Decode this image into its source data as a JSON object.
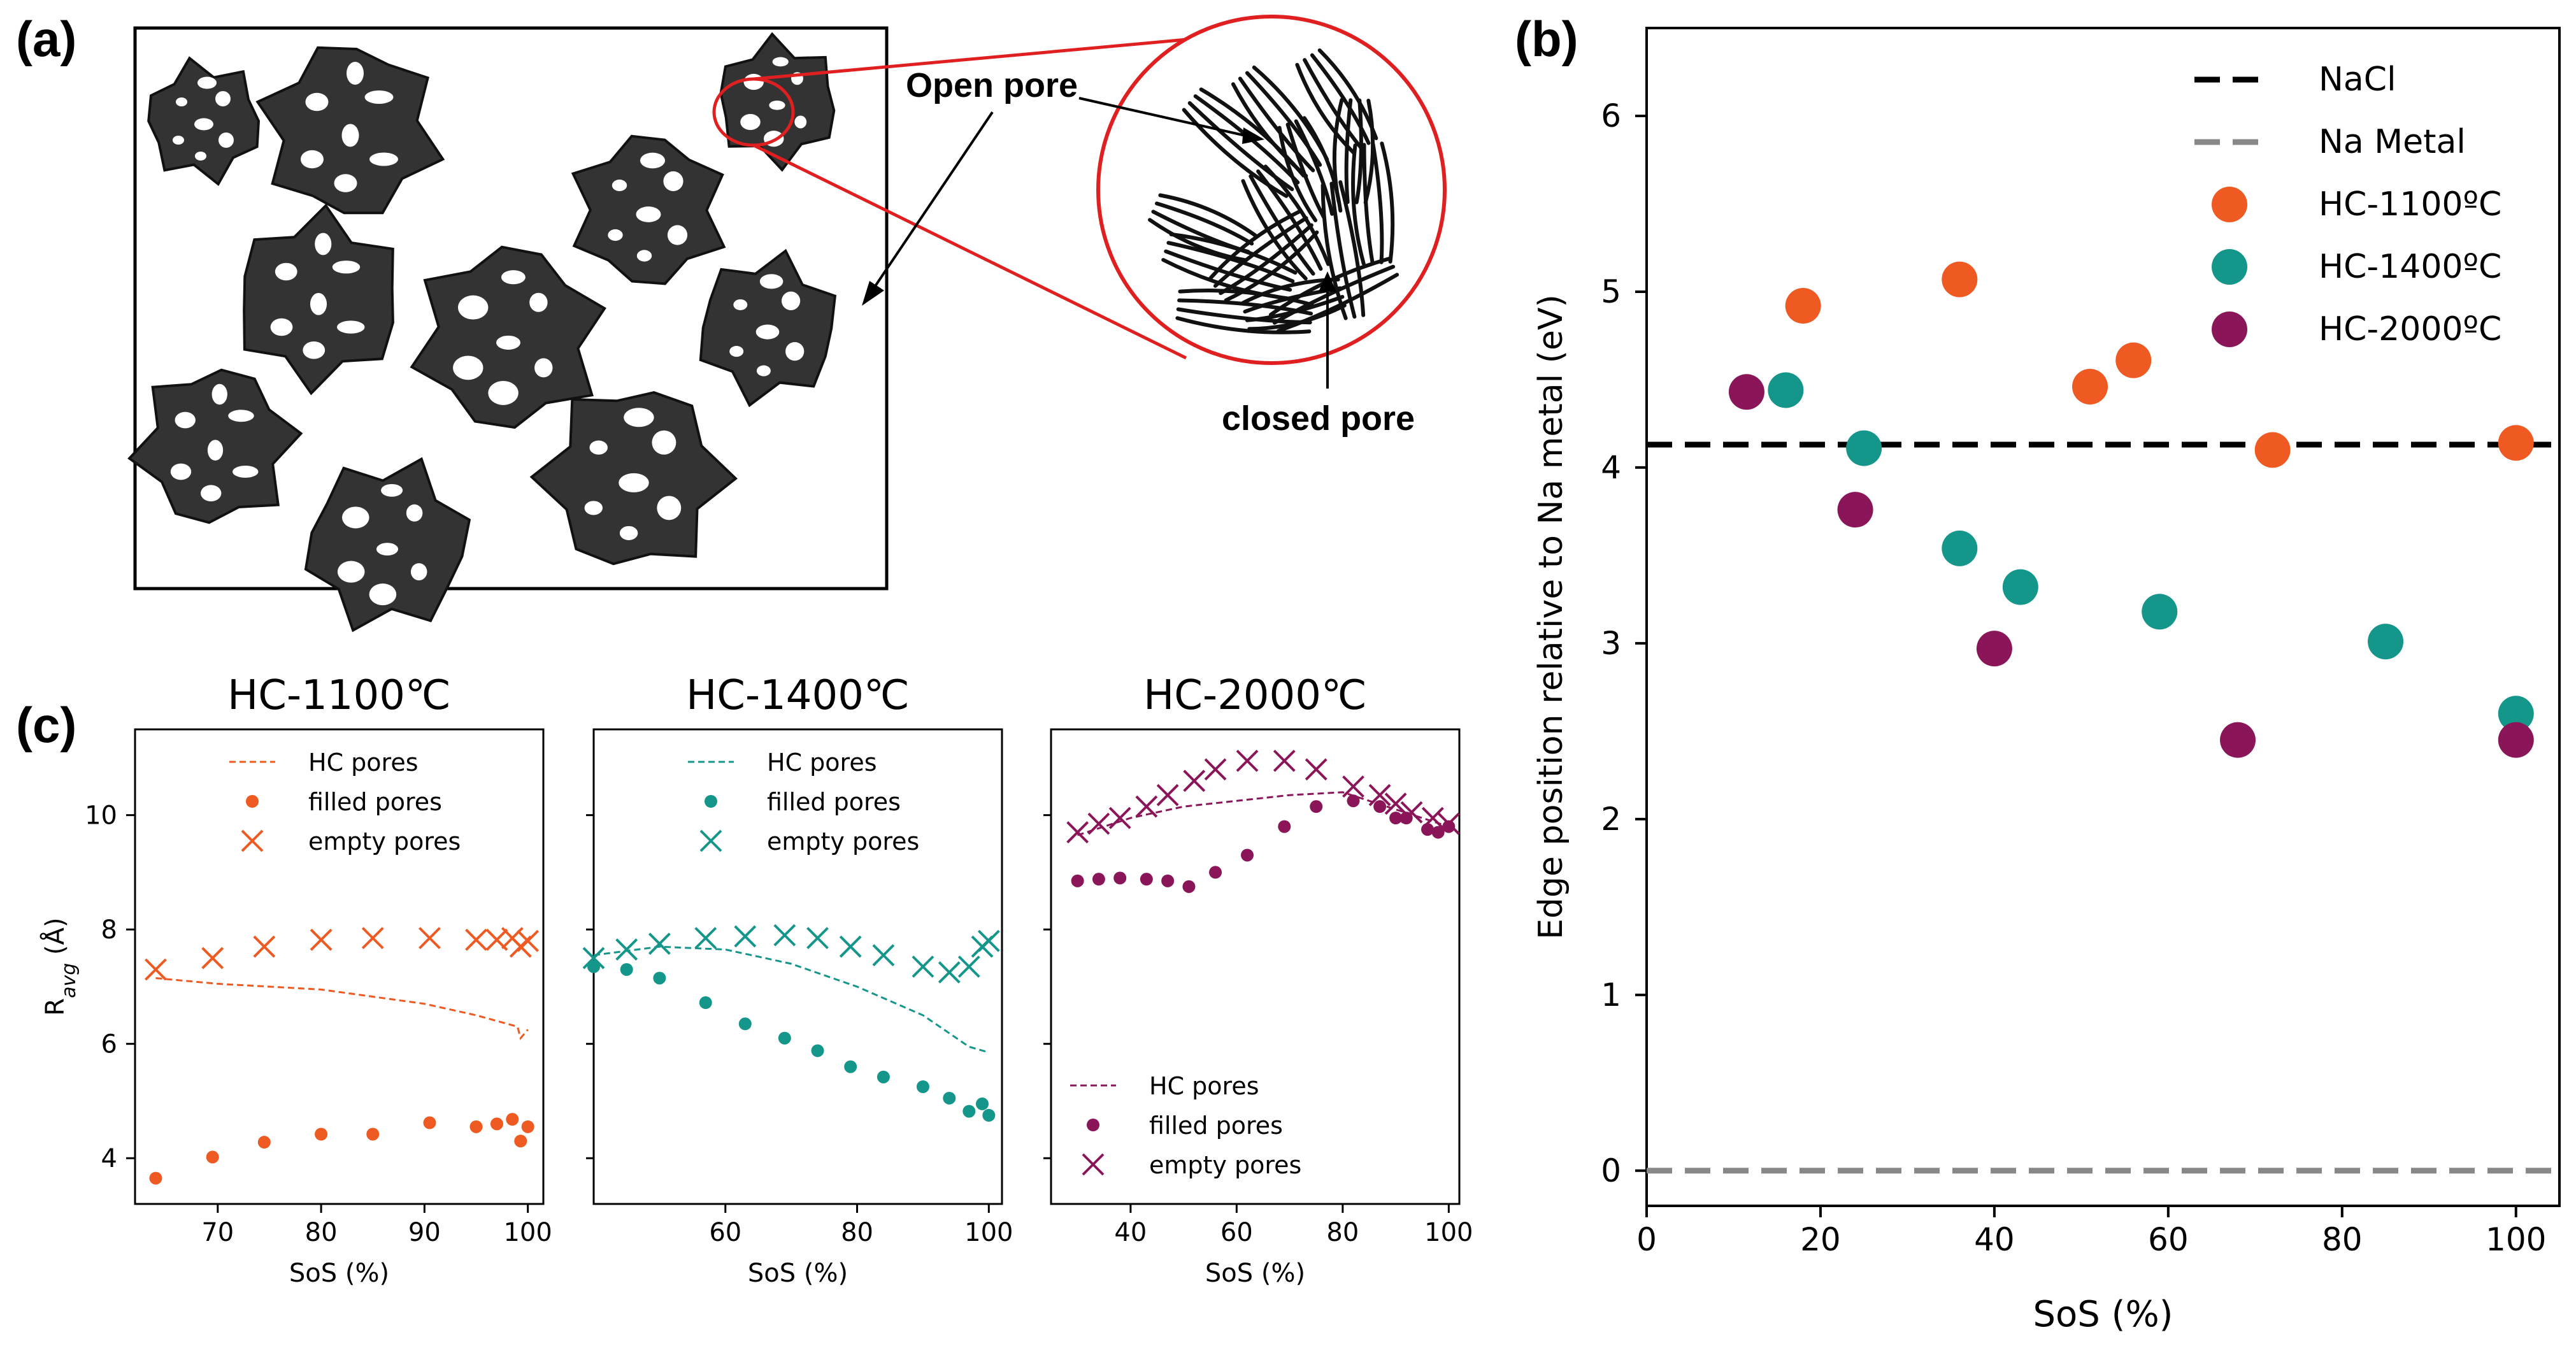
{
  "panel_a": {
    "label": "(a)",
    "open_pore_label": "Open pore",
    "closed_pore_label": "closed pore"
  },
  "colors": {
    "hc1100": "#ee5a22",
    "hc1400": "#15968a",
    "hc2000": "#8b1559",
    "nacl": "#000000",
    "na_metal": "#888888",
    "particle": "#333333"
  },
  "chart_data": [
    {
      "id": "b",
      "panel_label": "(b)",
      "type": "scatter",
      "xlabel": "SoS (%)",
      "ylabel": "Edge position relative to Na metal (eV)",
      "xlim": [
        0,
        105
      ],
      "ylim": [
        -0.2,
        6.5
      ],
      "xticks": [
        0,
        20,
        40,
        60,
        80,
        100
      ],
      "yticks": [
        0,
        1,
        2,
        3,
        4,
        5,
        6
      ],
      "hlines": [
        {
          "name": "NaCl",
          "y": 4.13,
          "color": "#000000"
        },
        {
          "name": "Na Metal",
          "y": 0.0,
          "color": "#888888"
        }
      ],
      "series": [
        {
          "name": "HC-1100ºC",
          "color": "#ee5a22",
          "points": [
            [
              18,
              4.92
            ],
            [
              36,
              5.07
            ],
            [
              51,
              4.46
            ],
            [
              56,
              4.61
            ],
            [
              72,
              4.1
            ],
            [
              100,
              4.14
            ]
          ]
        },
        {
          "name": "HC-1400ºC",
          "color": "#15968a",
          "points": [
            [
              16,
              4.44
            ],
            [
              25,
              4.11
            ],
            [
              36,
              3.54
            ],
            [
              43,
              3.32
            ],
            [
              59,
              3.18
            ],
            [
              85,
              3.01
            ],
            [
              100,
              2.6
            ]
          ]
        },
        {
          "name": "HC-2000ºC",
          "color": "#8b1559",
          "points": [
            [
              11.5,
              4.43
            ],
            [
              24,
              3.76
            ],
            [
              40,
              2.97
            ],
            [
              68,
              2.45
            ],
            [
              100,
              2.45
            ]
          ]
        }
      ]
    },
    {
      "id": "c1",
      "panel_label": "(c)",
      "type": "scatter",
      "title": "HC-1100℃",
      "xlabel": "SoS (%)",
      "ylabel": "R_avg (Å)",
      "color": "#ee5a22",
      "xlim": [
        62,
        101.5
      ],
      "ylim": [
        3.2,
        11.5
      ],
      "xticks": [
        70,
        80,
        90,
        100
      ],
      "yticks": [
        4,
        6,
        8,
        10
      ],
      "legend": {
        "hc": "HC pores",
        "filled": "filled pores",
        "empty": "empty pores"
      },
      "hc_pores": [
        [
          64,
          7.15
        ],
        [
          70,
          7.05
        ],
        [
          80,
          6.95
        ],
        [
          90,
          6.7
        ],
        [
          95,
          6.5
        ],
        [
          99,
          6.3
        ],
        [
          99.3,
          6.1
        ],
        [
          100,
          6.25
        ]
      ],
      "filled": [
        [
          64,
          3.65
        ],
        [
          69.5,
          4.02
        ],
        [
          74.5,
          4.28
        ],
        [
          80,
          4.42
        ],
        [
          85,
          4.42
        ],
        [
          90.5,
          4.62
        ],
        [
          95,
          4.55
        ],
        [
          97,
          4.6
        ],
        [
          98.5,
          4.68
        ],
        [
          99.3,
          4.3
        ],
        [
          100,
          4.55
        ]
      ],
      "empty": [
        [
          64,
          7.3
        ],
        [
          69.5,
          7.5
        ],
        [
          74.5,
          7.7
        ],
        [
          80,
          7.82
        ],
        [
          85,
          7.85
        ],
        [
          90.5,
          7.85
        ],
        [
          95,
          7.82
        ],
        [
          97,
          7.82
        ],
        [
          98.5,
          7.85
        ],
        [
          99.3,
          7.7
        ],
        [
          100,
          7.8
        ]
      ]
    },
    {
      "id": "c2",
      "type": "scatter",
      "title": "HC-1400℃",
      "xlabel": "SoS (%)",
      "color": "#15968a",
      "xlim": [
        40,
        102
      ],
      "ylim": [
        3.2,
        11.5
      ],
      "xticks": [
        60,
        80,
        100
      ],
      "yticks": [
        4,
        6,
        8,
        10
      ],
      "legend": {
        "hc": "HC pores",
        "filled": "filled pores",
        "empty": "empty pores"
      },
      "hc_pores": [
        [
          40,
          7.55
        ],
        [
          50,
          7.7
        ],
        [
          60,
          7.65
        ],
        [
          70,
          7.4
        ],
        [
          80,
          7.0
        ],
        [
          90,
          6.5
        ],
        [
          97,
          5.95
        ],
        [
          100,
          5.85
        ]
      ],
      "filled": [
        [
          40,
          7.35
        ],
        [
          45,
          7.3
        ],
        [
          50,
          7.15
        ],
        [
          57,
          6.72
        ],
        [
          63,
          6.35
        ],
        [
          69,
          6.1
        ],
        [
          74,
          5.88
        ],
        [
          79,
          5.6
        ],
        [
          84,
          5.42
        ],
        [
          90,
          5.25
        ],
        [
          94,
          5.05
        ],
        [
          97,
          4.82
        ],
        [
          99,
          4.95
        ],
        [
          100,
          4.75
        ]
      ],
      "empty": [
        [
          40,
          7.5
        ],
        [
          45,
          7.65
        ],
        [
          50,
          7.75
        ],
        [
          57,
          7.85
        ],
        [
          63,
          7.88
        ],
        [
          69,
          7.9
        ],
        [
          74,
          7.85
        ],
        [
          79,
          7.7
        ],
        [
          84,
          7.55
        ],
        [
          90,
          7.35
        ],
        [
          94,
          7.25
        ],
        [
          97,
          7.35
        ],
        [
          99,
          7.7
        ],
        [
          100,
          7.8
        ]
      ]
    },
    {
      "id": "c3",
      "type": "scatter",
      "title": "HC-2000℃",
      "xlabel": "SoS (%)",
      "color": "#8b1559",
      "xlim": [
        25,
        102
      ],
      "ylim": [
        3.2,
        11.5
      ],
      "xticks": [
        40,
        60,
        80,
        100
      ],
      "yticks": [
        4,
        6,
        8,
        10
      ],
      "legend": {
        "hc": "HC pores",
        "filled": "filled pores",
        "empty": "empty pores"
      },
      "hc_pores": [
        [
          30,
          9.65
        ],
        [
          40,
          9.95
        ],
        [
          50,
          10.15
        ],
        [
          60,
          10.25
        ],
        [
          70,
          10.35
        ],
        [
          80,
          10.4
        ],
        [
          90,
          10.1
        ],
        [
          100,
          9.8
        ]
      ],
      "filled": [
        [
          30,
          8.85
        ],
        [
          34,
          8.88
        ],
        [
          38,
          8.9
        ],
        [
          43,
          8.88
        ],
        [
          47,
          8.85
        ],
        [
          51,
          8.75
        ],
        [
          56,
          9.0
        ],
        [
          62,
          9.3
        ],
        [
          69,
          9.8
        ],
        [
          75,
          10.15
        ],
        [
          82,
          10.25
        ],
        [
          87,
          10.15
        ],
        [
          90,
          9.95
        ],
        [
          92,
          9.95
        ],
        [
          96,
          9.75
        ],
        [
          98,
          9.7
        ],
        [
          100,
          9.8
        ]
      ],
      "empty": [
        [
          30,
          9.7
        ],
        [
          34,
          9.85
        ],
        [
          38,
          9.95
        ],
        [
          43,
          10.15
        ],
        [
          47,
          10.35
        ],
        [
          52,
          10.6
        ],
        [
          56,
          10.8
        ],
        [
          62,
          10.95
        ],
        [
          69,
          10.95
        ],
        [
          75,
          10.8
        ],
        [
          82,
          10.5
        ],
        [
          87,
          10.35
        ],
        [
          90,
          10.2
        ],
        [
          93,
          10.05
        ],
        [
          97,
          9.95
        ],
        [
          100,
          9.85
        ]
      ]
    }
  ]
}
